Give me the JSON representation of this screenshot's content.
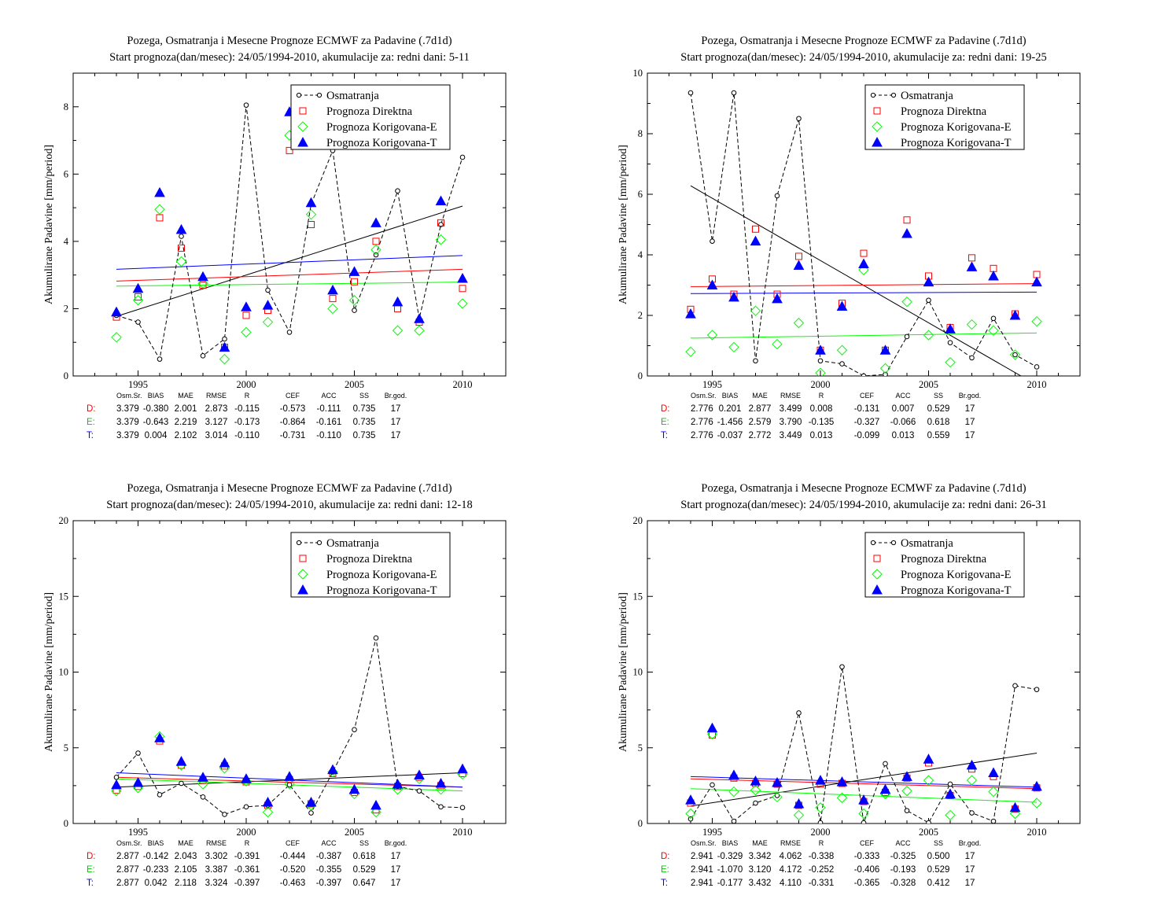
{
  "legend": {
    "items": [
      {
        "label": "Osmatranja",
        "marker": "circle-dashed",
        "color": "#000000"
      },
      {
        "label": "Prognoza Direktna",
        "marker": "square",
        "color": "#ff0000"
      },
      {
        "label": "Prognoza Korigovana-E",
        "marker": "diamond",
        "color": "#00ff00"
      },
      {
        "label": "Prognoza Korigovana-T",
        "marker": "triangle-filled",
        "color": "#0000ff"
      }
    ]
  },
  "stats_header": [
    "Osm.Sr.",
    "BIAS",
    "MAE",
    "RMSE",
    "R",
    "CEF",
    "ACC",
    "SS",
    "Br.god."
  ],
  "chart_data": [
    {
      "type": "scatter",
      "title": "Pozega, Osmatranja i Mesecne Prognoze ECMWF za Padavine (.7d1d)",
      "subtitle": "Start prognoza(dan/mesec): 24/05/1994-2010, akumulacije za: redni dani: 5-11",
      "ylabel": "Akumulirane Padavine [mm/period]",
      "xlim": [
        1992,
        2012
      ],
      "ylim": [
        0,
        9
      ],
      "xticks": [
        1995,
        2000,
        2005,
        2010
      ],
      "yticks": [
        0,
        2,
        4,
        6,
        8
      ],
      "x": [
        1994,
        1995,
        1996,
        1997,
        1998,
        1999,
        2000,
        2001,
        2002,
        2003,
        2004,
        2005,
        2006,
        2007,
        2008,
        2009,
        2010
      ],
      "series": [
        {
          "name": "Osmatranja",
          "values": [
            1.8,
            1.6,
            0.5,
            4.15,
            0.6,
            1.1,
            8.05,
            2.55,
            1.3,
            5.1,
            6.7,
            1.95,
            3.6,
            5.5,
            1.7,
            4.5,
            6.5
          ]
        },
        {
          "name": "Prognoza Direktna",
          "values": [
            1.75,
            2.35,
            4.7,
            3.8,
            2.7,
            0.85,
            1.8,
            1.95,
            6.7,
            4.5,
            2.3,
            2.8,
            4.0,
            2.0,
            1.6,
            4.55,
            2.6
          ]
        },
        {
          "name": "Prognoza Korigovana-E",
          "values": [
            1.15,
            2.25,
            4.95,
            3.4,
            2.75,
            0.5,
            1.3,
            1.6,
            7.15,
            4.8,
            2.0,
            2.25,
            3.75,
            1.35,
            1.35,
            4.05,
            2.15
          ]
        },
        {
          "name": "Prognoza Korigovana-T",
          "values": [
            1.9,
            2.6,
            5.45,
            4.35,
            2.95,
            0.85,
            2.05,
            2.1,
            7.85,
            5.15,
            2.55,
            3.1,
            4.55,
            2.2,
            1.7,
            5.2,
            2.9
          ]
        }
      ],
      "trends": [
        {
          "color": "#000000",
          "y_start": 1.77,
          "y_end": 5.05
        },
        {
          "color": "#ff0000",
          "y_start": 2.82,
          "y_end": 3.17
        },
        {
          "color": "#00ff00",
          "y_start": 2.67,
          "y_end": 2.79
        },
        {
          "color": "#0000ff",
          "y_start": 3.17,
          "y_end": 3.58
        }
      ],
      "stats": [
        {
          "label": "D:",
          "color": "#ff0000",
          "values": [
            "3.379",
            "-0.380",
            "2.001",
            "2.873",
            "-0.115",
            "-0.573",
            "-0.111",
            "0.735",
            "17"
          ]
        },
        {
          "label": "E:",
          "color": "#00cc00",
          "values": [
            "3.379",
            "-0.643",
            "2.219",
            "3.127",
            "-0.173",
            "-0.864",
            "-0.161",
            "0.735",
            "17"
          ]
        },
        {
          "label": "T:",
          "color": "#0000ff",
          "values": [
            "3.379",
            "0.004",
            "2.102",
            "3.014",
            "-0.110",
            "-0.731",
            "-0.110",
            "0.735",
            "17"
          ]
        }
      ]
    },
    {
      "type": "scatter",
      "title": "Pozega, Osmatranja i Mesecne Prognoze ECMWF za Padavine (.7d1d)",
      "subtitle": "Start prognoza(dan/mesec): 24/05/1994-2010, akumulacije za: redni dani: 19-25",
      "ylabel": "Akumulirane Padavine [mm/period]",
      "xlim": [
        1992,
        2012
      ],
      "ylim": [
        0,
        10
      ],
      "xticks": [
        1995,
        2000,
        2005,
        2010
      ],
      "yticks": [
        0,
        2,
        4,
        6,
        8,
        10
      ],
      "x": [
        1994,
        1995,
        1996,
        1997,
        1998,
        1999,
        2000,
        2001,
        2002,
        2003,
        2004,
        2005,
        2006,
        2007,
        2008,
        2009,
        2010
      ],
      "series": [
        {
          "name": "Osmatranja",
          "values": [
            9.35,
            4.45,
            9.35,
            0.5,
            5.95,
            8.5,
            0.5,
            0.4,
            0.0,
            0.05,
            1.3,
            2.5,
            1.1,
            0.6,
            1.9,
            0.7,
            0.3
          ]
        },
        {
          "name": "Prognoza Direktna",
          "values": [
            2.2,
            3.2,
            2.7,
            4.85,
            2.7,
            3.95,
            0.85,
            2.4,
            4.05,
            0.85,
            5.15,
            3.3,
            1.6,
            3.9,
            3.55,
            2.05,
            3.35
          ]
        },
        {
          "name": "Prognoza Korigovana-E",
          "values": [
            0.8,
            1.35,
            0.95,
            2.15,
            1.05,
            1.75,
            0.1,
            0.85,
            3.5,
            0.25,
            2.45,
            1.35,
            0.45,
            1.7,
            1.5,
            0.7,
            1.8
          ]
        },
        {
          "name": "Prognoza Korigovana-T",
          "values": [
            2.05,
            3.0,
            2.6,
            4.45,
            2.55,
            3.65,
            0.85,
            2.3,
            3.7,
            0.85,
            4.7,
            3.1,
            1.55,
            3.6,
            3.3,
            2.0,
            3.1
          ]
        }
      ],
      "trends": [
        {
          "color": "#000000",
          "y_start": 6.28,
          "y_end": -0.3
        },
        {
          "color": "#ff0000",
          "y_start": 2.95,
          "y_end": 3.05
        },
        {
          "color": "#00ff00",
          "y_start": 1.25,
          "y_end": 1.42
        },
        {
          "color": "#0000ff",
          "y_start": 2.72,
          "y_end": 2.77
        }
      ],
      "stats": [
        {
          "label": "D:",
          "color": "#ff0000",
          "values": [
            "2.776",
            "0.201",
            "2.877",
            "3.499",
            "0.008",
            "-0.131",
            "0.007",
            "0.529",
            "17"
          ]
        },
        {
          "label": "E:",
          "color": "#00cc00",
          "values": [
            "2.776",
            "-1.456",
            "2.579",
            "3.790",
            "-0.135",
            "-0.327",
            "-0.066",
            "0.618",
            "17"
          ]
        },
        {
          "label": "T:",
          "color": "#0000ff",
          "values": [
            "2.776",
            "-0.037",
            "2.772",
            "3.449",
            "0.013",
            "-0.099",
            "0.013",
            "0.559",
            "17"
          ]
        }
      ]
    },
    {
      "type": "scatter",
      "title": "Pozega, Osmatranja i Mesecne Prognoze ECMWF za Padavine (.7d1d)",
      "subtitle": "Start prognoza(dan/mesec): 24/05/1994-2010, akumulacije za: redni dani: 12-18",
      "ylabel": "Akumulirane Padavine [mm/period]",
      "xlim": [
        1992,
        2012
      ],
      "ylim": [
        0,
        20
      ],
      "xticks": [
        1995,
        2000,
        2005,
        2010
      ],
      "yticks": [
        0,
        5,
        10,
        15,
        20
      ],
      "x": [
        1994,
        1995,
        1996,
        1997,
        1998,
        1999,
        2000,
        2001,
        2002,
        2003,
        2004,
        2005,
        2006,
        2007,
        2008,
        2009,
        2010
      ],
      "series": [
        {
          "name": "Osmatranja",
          "values": [
            3.05,
            4.65,
            1.9,
            2.65,
            1.75,
            0.6,
            1.1,
            1.2,
            2.55,
            0.7,
            3.4,
            6.2,
            12.25,
            2.45,
            2.15,
            1.1,
            1.05
          ]
        },
        {
          "name": "Prognoza Direktna",
          "values": [
            2.2,
            2.45,
            5.45,
            3.85,
            2.85,
            3.8,
            2.75,
            1.2,
            2.9,
            1.3,
            3.3,
            2.05,
            0.9,
            2.45,
            3.05,
            2.5,
            3.3
          ]
        },
        {
          "name": "Prognoza Korigovana-E",
          "values": [
            2.15,
            2.35,
            5.75,
            3.85,
            2.6,
            3.65,
            2.8,
            0.75,
            2.6,
            1.2,
            3.4,
            1.95,
            0.75,
            2.25,
            2.95,
            2.25,
            3.25
          ]
        },
        {
          "name": "Prognoza Korigovana-T",
          "values": [
            2.55,
            2.7,
            5.65,
            4.1,
            3.05,
            4.0,
            2.95,
            1.4,
            3.1,
            1.4,
            3.55,
            2.25,
            1.2,
            2.6,
            3.2,
            2.65,
            3.6
          ]
        }
      ],
      "trends": [
        {
          "color": "#000000",
          "y_start": 2.4,
          "y_end": 3.35
        },
        {
          "color": "#ff0000",
          "y_start": 3.05,
          "y_end": 2.4
        },
        {
          "color": "#00ff00",
          "y_start": 2.95,
          "y_end": 2.15
        },
        {
          "color": "#0000ff",
          "y_start": 3.35,
          "y_end": 2.4
        }
      ],
      "stats": [
        {
          "label": "D:",
          "color": "#ff0000",
          "values": [
            "2.877",
            "-0.142",
            "2.043",
            "3.302",
            "-0.391",
            "-0.444",
            "-0.387",
            "0.618",
            "17"
          ]
        },
        {
          "label": "E:",
          "color": "#00cc00",
          "values": [
            "2.877",
            "-0.233",
            "2.105",
            "3.387",
            "-0.361",
            "-0.520",
            "-0.355",
            "0.529",
            "17"
          ]
        },
        {
          "label": "T:",
          "color": "#0000ff",
          "values": [
            "2.877",
            "0.042",
            "2.118",
            "3.324",
            "-0.397",
            "-0.463",
            "-0.397",
            "0.647",
            "17"
          ]
        }
      ]
    },
    {
      "type": "scatter",
      "title": "Pozega, Osmatranja i Mesecne Prognoze ECMWF za Padavine (.7d1d)",
      "subtitle": "Start prognoza(dan/mesec): 24/05/1994-2010, akumulacije za: redni dani: 26-31",
      "ylabel": "Akumulirane Padavine [mm/period]",
      "xlim": [
        1992,
        2012
      ],
      "ylim": [
        0,
        20
      ],
      "xticks": [
        1995,
        2000,
        2005,
        2010
      ],
      "yticks": [
        0,
        5,
        10,
        15,
        20
      ],
      "x": [
        1994,
        1995,
        1996,
        1997,
        1998,
        1999,
        2000,
        2001,
        2002,
        2003,
        2004,
        2005,
        2006,
        2007,
        2008,
        2009,
        2010
      ],
      "series": [
        {
          "name": "Osmatranja",
          "values": [
            0.3,
            2.55,
            0.15,
            1.35,
            1.85,
            7.3,
            0.05,
            10.35,
            0.05,
            3.95,
            0.85,
            0.05,
            2.6,
            0.7,
            0.15,
            9.1,
            8.85
          ]
        },
        {
          "name": "Prognoza Direktna",
          "values": [
            1.35,
            5.85,
            3.0,
            2.65,
            2.6,
            1.2,
            2.6,
            2.65,
            1.45,
            2.05,
            3.0,
            4.0,
            1.85,
            3.6,
            3.1,
            0.95,
            2.35
          ]
        },
        {
          "name": "Prognoza Korigovana-E",
          "values": [
            0.65,
            5.9,
            2.1,
            2.2,
            1.75,
            0.55,
            1.05,
            1.7,
            0.65,
            1.95,
            2.15,
            2.85,
            0.55,
            2.85,
            2.1,
            0.65,
            1.35
          ]
        },
        {
          "name": "Prognoza Korigovana-T",
          "values": [
            1.55,
            6.3,
            3.2,
            2.8,
            2.7,
            1.3,
            2.85,
            2.75,
            1.55,
            2.25,
            3.1,
            4.25,
            1.95,
            3.85,
            3.35,
            1.05,
            2.45
          ]
        }
      ],
      "trends": [
        {
          "color": "#000000",
          "y_start": 1.15,
          "y_end": 4.65
        },
        {
          "color": "#ff0000",
          "y_start": 2.95,
          "y_end": 2.3
        },
        {
          "color": "#00ff00",
          "y_start": 2.3,
          "y_end": 1.4
        },
        {
          "color": "#0000ff",
          "y_start": 3.1,
          "y_end": 2.4
        }
      ],
      "stats": [
        {
          "label": "D:",
          "color": "#ff0000",
          "values": [
            "2.941",
            "-0.329",
            "3.342",
            "4.062",
            "-0.338",
            "-0.333",
            "-0.325",
            "0.500",
            "17"
          ]
        },
        {
          "label": "E:",
          "color": "#00cc00",
          "values": [
            "2.941",
            "-1.070",
            "3.120",
            "4.172",
            "-0.252",
            "-0.406",
            "-0.193",
            "0.529",
            "17"
          ]
        },
        {
          "label": "T:",
          "color": "#0000ff",
          "values": [
            "2.941",
            "-0.177",
            "3.432",
            "4.110",
            "-0.331",
            "-0.365",
            "-0.328",
            "0.412",
            "17"
          ]
        }
      ]
    }
  ]
}
